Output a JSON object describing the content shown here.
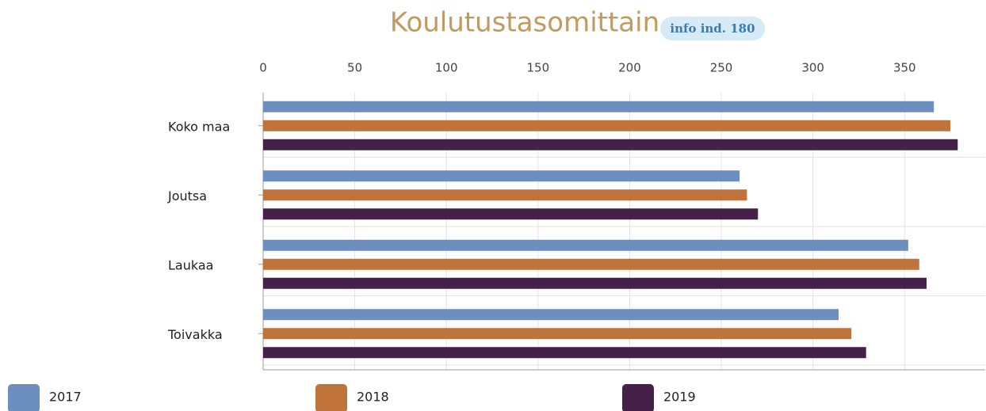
{
  "chart_data": {
    "type": "hbar",
    "title": "Koulutustasomittain",
    "badge": "info ind. 180",
    "categories": [
      "Koko maa",
      "Joutsa",
      "Laukaa",
      "Toivakka"
    ],
    "series": [
      {
        "name": "2017",
        "color": "#6d8fbf",
        "values": [
          366,
          260,
          352,
          314
        ]
      },
      {
        "name": "2018",
        "color": "#c0733a",
        "values": [
          375,
          264,
          358,
          321
        ]
      },
      {
        "name": "2019",
        "color": "#45214a",
        "values": [
          379,
          270,
          362,
          329
        ]
      }
    ],
    "xlim": [
      0,
      394
    ],
    "xticks": [
      0,
      50,
      100,
      150,
      200,
      250,
      300,
      350
    ],
    "grid": true
  }
}
